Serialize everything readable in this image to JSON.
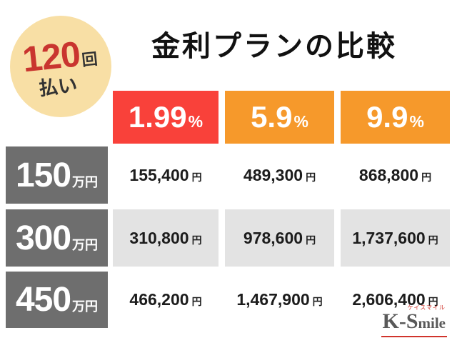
{
  "badge": {
    "number": "120",
    "unit": "回",
    "label": "払い"
  },
  "title": "金利プランの比較",
  "table": {
    "rate_headers": [
      "1.99",
      "5.9",
      "9.9"
    ],
    "percent_suffix": "%",
    "amount_unit": "万円",
    "yen_suffix": "円",
    "rows": [
      {
        "amount": "150",
        "values": [
          "155,400",
          "489,300",
          "868,800"
        ]
      },
      {
        "amount": "300",
        "values": [
          "310,800",
          "978,600",
          "1,737,600"
        ]
      },
      {
        "amount": "450",
        "values": [
          "466,200",
          "1,467,900",
          "2,606,400"
        ]
      }
    ]
  },
  "logo": {
    "prefix": "K-S",
    "suffix": "mile",
    "kana": "ケイスマイル"
  },
  "colors": {
    "rate_red": "#f9413a",
    "rate_orange": "#f6992b",
    "row_header_gray": "#6e6e6e",
    "badge_cream": "#f8dfa5",
    "alt_row_gray": "#e3e3e3",
    "badge_number_red": "#c9352f",
    "logo_red": "#d0342c"
  },
  "chart_data": {
    "type": "table",
    "title": "金利プランの比較",
    "badge": "120回払い",
    "column_headers": [
      "1.99%",
      "5.9%",
      "9.9%"
    ],
    "row_headers": [
      "150万円",
      "300万円",
      "450万円"
    ],
    "cells": [
      [
        "155,400円",
        "489,300円",
        "868,800円"
      ],
      [
        "310,800円",
        "978,600円",
        "1,737,600円"
      ],
      [
        "466,200円",
        "1,467,900円",
        "2,606,400円"
      ]
    ]
  }
}
